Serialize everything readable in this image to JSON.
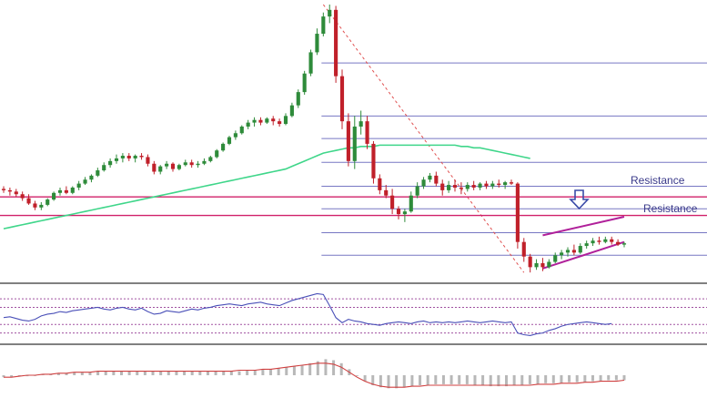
{
  "colors": {
    "background": "#ffffff",
    "bull_candle": "#2e8b3a",
    "bear_candle": "#c0202a",
    "fib_line": "#4a4ab0",
    "fib_diagonal": "#e05050",
    "sma_line": "#3fd68a",
    "resistance_line": "#d0206a",
    "channel_line": "#b0209a",
    "arrow": "#3a4aa8",
    "panel_divider": "#000000",
    "rsi_line": "#4a50b8",
    "rsi_level": "#a050a0",
    "macd_hist": "#b8b8b8",
    "macd_signal": "#d04040",
    "label_text": "#3a3a8a"
  },
  "annotations": {
    "resistance_upper": "Resistance",
    "resistance_lower": "Resistance",
    "arrow_icon": "down-arrow-icon"
  },
  "chart_data": {
    "type": "candlestick",
    "x": [],
    "xlabel": "",
    "ylabel": "",
    "panels": [
      "price",
      "rsi",
      "macd"
    ],
    "candles": [
      {
        "o": 245,
        "h": 247,
        "l": 242,
        "c": 244
      },
      {
        "o": 244,
        "h": 246,
        "l": 240,
        "c": 243
      },
      {
        "o": 243,
        "h": 245,
        "l": 239,
        "c": 241
      },
      {
        "o": 241,
        "h": 243,
        "l": 236,
        "c": 238
      },
      {
        "o": 238,
        "h": 241,
        "l": 233,
        "c": 234
      },
      {
        "o": 234,
        "h": 236,
        "l": 229,
        "c": 231
      },
      {
        "o": 231,
        "h": 235,
        "l": 229,
        "c": 233
      },
      {
        "o": 233,
        "h": 238,
        "l": 232,
        "c": 237
      },
      {
        "o": 237,
        "h": 243,
        "l": 236,
        "c": 242
      },
      {
        "o": 242,
        "h": 246,
        "l": 240,
        "c": 244
      },
      {
        "o": 244,
        "h": 247,
        "l": 241,
        "c": 242
      },
      {
        "o": 242,
        "h": 247,
        "l": 241,
        "c": 246
      },
      {
        "o": 246,
        "h": 251,
        "l": 244,
        "c": 249
      },
      {
        "o": 249,
        "h": 254,
        "l": 248,
        "c": 252
      },
      {
        "o": 252,
        "h": 256,
        "l": 250,
        "c": 255
      },
      {
        "o": 255,
        "h": 261,
        "l": 254,
        "c": 259
      },
      {
        "o": 259,
        "h": 265,
        "l": 258,
        "c": 263
      },
      {
        "o": 263,
        "h": 268,
        "l": 261,
        "c": 266
      },
      {
        "o": 266,
        "h": 271,
        "l": 264,
        "c": 268
      },
      {
        "o": 268,
        "h": 272,
        "l": 265,
        "c": 270
      },
      {
        "o": 270,
        "h": 272,
        "l": 266,
        "c": 268
      },
      {
        "o": 268,
        "h": 271,
        "l": 265,
        "c": 270
      },
      {
        "o": 270,
        "h": 272,
        "l": 267,
        "c": 269
      },
      {
        "o": 269,
        "h": 271,
        "l": 262,
        "c": 264
      },
      {
        "o": 264,
        "h": 266,
        "l": 256,
        "c": 258
      },
      {
        "o": 258,
        "h": 263,
        "l": 256,
        "c": 262
      },
      {
        "o": 262,
        "h": 266,
        "l": 260,
        "c": 264
      },
      {
        "o": 264,
        "h": 265,
        "l": 258,
        "c": 260
      },
      {
        "o": 260,
        "h": 264,
        "l": 259,
        "c": 263
      },
      {
        "o": 263,
        "h": 267,
        "l": 262,
        "c": 265
      },
      {
        "o": 265,
        "h": 267,
        "l": 261,
        "c": 263
      },
      {
        "o": 263,
        "h": 266,
        "l": 261,
        "c": 264
      },
      {
        "o": 264,
        "h": 268,
        "l": 263,
        "c": 266
      },
      {
        "o": 266,
        "h": 270,
        "l": 265,
        "c": 269
      },
      {
        "o": 269,
        "h": 275,
        "l": 268,
        "c": 274
      },
      {
        "o": 274,
        "h": 280,
        "l": 273,
        "c": 279
      },
      {
        "o": 279,
        "h": 285,
        "l": 278,
        "c": 284
      },
      {
        "o": 284,
        "h": 289,
        "l": 282,
        "c": 287
      },
      {
        "o": 287,
        "h": 293,
        "l": 286,
        "c": 292
      },
      {
        "o": 292,
        "h": 297,
        "l": 290,
        "c": 295
      },
      {
        "o": 295,
        "h": 299,
        "l": 292,
        "c": 297
      },
      {
        "o": 297,
        "h": 299,
        "l": 293,
        "c": 295
      },
      {
        "o": 295,
        "h": 299,
        "l": 294,
        "c": 298
      },
      {
        "o": 298,
        "h": 300,
        "l": 293,
        "c": 296
      },
      {
        "o": 296,
        "h": 298,
        "l": 292,
        "c": 294
      },
      {
        "o": 294,
        "h": 302,
        "l": 293,
        "c": 300
      },
      {
        "o": 300,
        "h": 310,
        "l": 299,
        "c": 308
      },
      {
        "o": 308,
        "h": 320,
        "l": 306,
        "c": 318
      },
      {
        "o": 318,
        "h": 334,
        "l": 316,
        "c": 332
      },
      {
        "o": 332,
        "h": 350,
        "l": 330,
        "c": 348
      },
      {
        "o": 348,
        "h": 366,
        "l": 346,
        "c": 362
      },
      {
        "o": 362,
        "h": 378,
        "l": 360,
        "c": 375
      },
      {
        "o": 375,
        "h": 384,
        "l": 370,
        "c": 380
      },
      {
        "o": 380,
        "h": 383,
        "l": 325,
        "c": 330
      },
      {
        "o": 330,
        "h": 335,
        "l": 290,
        "c": 296
      },
      {
        "o": 296,
        "h": 302,
        "l": 262,
        "c": 266
      },
      {
        "o": 266,
        "h": 300,
        "l": 260,
        "c": 292
      },
      {
        "o": 292,
        "h": 304,
        "l": 286,
        "c": 296
      },
      {
        "o": 296,
        "h": 300,
        "l": 275,
        "c": 279
      },
      {
        "o": 279,
        "h": 281,
        "l": 249,
        "c": 253
      },
      {
        "o": 253,
        "h": 256,
        "l": 241,
        "c": 244
      },
      {
        "o": 244,
        "h": 248,
        "l": 238,
        "c": 240
      },
      {
        "o": 240,
        "h": 245,
        "l": 226,
        "c": 230
      },
      {
        "o": 230,
        "h": 232,
        "l": 222,
        "c": 226
      },
      {
        "o": 226,
        "h": 230,
        "l": 220,
        "c": 228
      },
      {
        "o": 228,
        "h": 243,
        "l": 227,
        "c": 240
      },
      {
        "o": 240,
        "h": 250,
        "l": 238,
        "c": 247
      },
      {
        "o": 247,
        "h": 254,
        "l": 245,
        "c": 252
      },
      {
        "o": 252,
        "h": 257,
        "l": 250,
        "c": 255
      },
      {
        "o": 255,
        "h": 258,
        "l": 247,
        "c": 249
      },
      {
        "o": 249,
        "h": 252,
        "l": 240,
        "c": 244
      },
      {
        "o": 244,
        "h": 251,
        "l": 242,
        "c": 248
      },
      {
        "o": 248,
        "h": 252,
        "l": 243,
        "c": 246
      },
      {
        "o": 246,
        "h": 250,
        "l": 241,
        "c": 245
      },
      {
        "o": 245,
        "h": 250,
        "l": 243,
        "c": 248
      },
      {
        "o": 248,
        "h": 251,
        "l": 244,
        "c": 246
      },
      {
        "o": 246,
        "h": 250,
        "l": 244,
        "c": 249
      },
      {
        "o": 249,
        "h": 251,
        "l": 245,
        "c": 247
      },
      {
        "o": 247,
        "h": 251,
        "l": 245,
        "c": 249
      },
      {
        "o": 249,
        "h": 252,
        "l": 246,
        "c": 248
      },
      {
        "o": 248,
        "h": 251,
        "l": 245,
        "c": 250
      },
      {
        "o": 250,
        "h": 252,
        "l": 248,
        "c": 249
      },
      {
        "o": 249,
        "h": 250,
        "l": 200,
        "c": 205
      },
      {
        "o": 205,
        "h": 208,
        "l": 190,
        "c": 194
      },
      {
        "o": 194,
        "h": 196,
        "l": 182,
        "c": 186
      },
      {
        "o": 186,
        "h": 192,
        "l": 184,
        "c": 189
      },
      {
        "o": 189,
        "h": 193,
        "l": 183,
        "c": 186
      },
      {
        "o": 186,
        "h": 192,
        "l": 185,
        "c": 190
      },
      {
        "o": 190,
        "h": 197,
        "l": 189,
        "c": 195
      },
      {
        "o": 195,
        "h": 199,
        "l": 192,
        "c": 197
      },
      {
        "o": 197,
        "h": 201,
        "l": 194,
        "c": 199
      },
      {
        "o": 199,
        "h": 203,
        "l": 195,
        "c": 197
      },
      {
        "o": 197,
        "h": 204,
        "l": 196,
        "c": 202
      },
      {
        "o": 202,
        "h": 206,
        "l": 200,
        "c": 204
      },
      {
        "o": 204,
        "h": 208,
        "l": 202,
        "c": 206
      },
      {
        "o": 206,
        "h": 209,
        "l": 203,
        "c": 205
      },
      {
        "o": 205,
        "h": 209,
        "l": 204,
        "c": 207
      },
      {
        "o": 207,
        "h": 209,
        "l": 203,
        "c": 205
      },
      {
        "o": 205,
        "h": 207,
        "l": 202,
        "c": 203
      },
      {
        "o": 203,
        "h": 205,
        "l": 201,
        "c": 204
      }
    ],
    "sma": [
      215,
      216,
      217,
      218,
      219,
      220,
      221,
      222,
      223,
      224,
      225,
      226,
      227,
      228,
      229,
      230,
      231,
      232,
      233,
      234,
      235,
      236,
      237,
      238,
      239,
      240,
      241,
      242,
      243,
      244,
      245,
      246,
      247,
      248,
      249,
      250,
      251,
      252,
      253,
      254,
      255,
      256,
      257,
      258,
      259,
      260,
      262,
      264,
      266,
      268,
      270,
      272,
      273,
      274,
      275,
      276,
      276,
      277,
      277,
      277,
      278,
      278,
      278,
      278,
      278,
      278,
      278,
      278,
      278,
      278,
      278,
      278,
      278,
      277,
      277,
      276,
      276,
      275,
      274,
      273,
      272,
      271,
      270,
      269,
      268
    ],
    "fib_levels": [
      195,
      212,
      230,
      247,
      265,
      283,
      300,
      340
    ],
    "resistance_levels": [
      239,
      225
    ],
    "channel": {
      "upper": [
        [
          86,
          210
        ],
        [
          99,
          224
        ]
      ],
      "lower": [
        [
          86,
          185
        ],
        [
          99,
          205
        ]
      ]
    },
    "rsi": [
      48,
      49,
      47,
      45,
      44,
      46,
      50,
      52,
      53,
      55,
      54,
      56,
      57,
      58,
      59,
      60,
      58,
      57,
      59,
      60,
      58,
      57,
      59,
      55,
      52,
      53,
      56,
      55,
      54,
      56,
      58,
      57,
      59,
      60,
      62,
      63,
      64,
      63,
      62,
      64,
      65,
      66,
      64,
      63,
      62,
      65,
      68,
      70,
      72,
      74,
      76,
      75,
      62,
      48,
      42,
      46,
      44,
      43,
      41,
      40,
      39,
      41,
      42,
      43,
      42,
      41,
      43,
      44,
      42,
      43,
      42,
      43,
      42,
      43,
      44,
      43,
      42,
      43,
      44,
      43,
      42,
      43,
      30,
      28,
      27,
      29,
      30,
      33,
      35,
      38,
      40,
      41,
      42,
      43,
      42,
      41,
      40,
      41
    ],
    "rsi_levels": [
      70,
      60,
      40,
      30
    ],
    "macd_hist": [
      -2,
      -2,
      -1,
      -1,
      0,
      1,
      1,
      2,
      2,
      3,
      3,
      3,
      4,
      4,
      4,
      4,
      4,
      4,
      4,
      4,
      4,
      4,
      4,
      4,
      4,
      4,
      4,
      4,
      4,
      4,
      4,
      5,
      5,
      6,
      6,
      7,
      8,
      9,
      10,
      12,
      14,
      16,
      15,
      12,
      6,
      0,
      -6,
      -10,
      -12,
      -13,
      -13,
      -12,
      -11,
      -10,
      -10,
      -9,
      -9,
      -9,
      -9,
      -9,
      -10,
      -10,
      -11,
      -11,
      -11,
      -10,
      -10,
      -9,
      -9,
      -8,
      -8,
      -8,
      -7,
      -7,
      -7,
      -6,
      -6,
      -5,
      -5,
      -5
    ],
    "macd_signal": [
      -2,
      -2,
      -1,
      0,
      0,
      1,
      1,
      2,
      2,
      3,
      3,
      3,
      4,
      4,
      4,
      4,
      4,
      4,
      4,
      4,
      4,
      4,
      4,
      4,
      4,
      4,
      4,
      4,
      4,
      4,
      5,
      5,
      5,
      6,
      6,
      7,
      8,
      9,
      10,
      11,
      12,
      12,
      11,
      8,
      3,
      -2,
      -6,
      -9,
      -11,
      -12,
      -12,
      -12,
      -11,
      -11,
      -10,
      -10,
      -10,
      -10,
      -10,
      -10,
      -10,
      -10,
      -10,
      -10,
      -10,
      -10,
      -10,
      -10,
      -9,
      -9,
      -9,
      -8,
      -8,
      -8,
      -7,
      -7,
      -6,
      -6,
      -6,
      -5
    ]
  }
}
